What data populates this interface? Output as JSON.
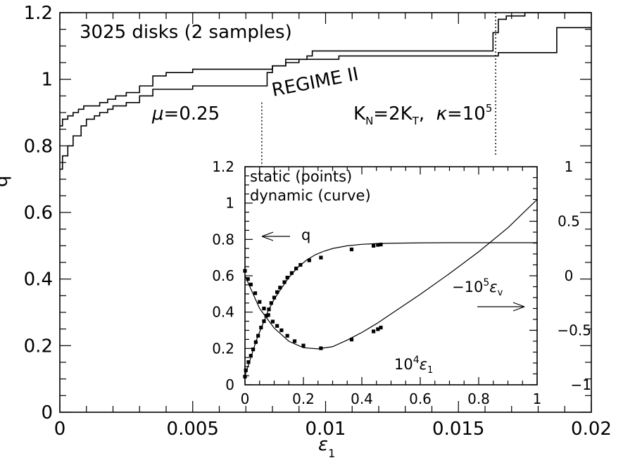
{
  "chart_data": [
    {
      "type": "line",
      "title": "",
      "xlabel": "ε",
      "xlabel_sub": "1",
      "ylabel": "q",
      "xlim": [
        0,
        0.02
      ],
      "ylim": [
        0,
        1.2
      ],
      "x_ticks": [
        0,
        0.005,
        0.01,
        0.015,
        0.02
      ],
      "x_tick_labels": [
        "0",
        "0.005",
        "0.01",
        "0.015",
        "0.02"
      ],
      "y_ticks": [
        0,
        0.2,
        0.4,
        0.6,
        0.8,
        1.0,
        1.2
      ],
      "y_tick_labels": [
        "0",
        "0.2",
        "0.4",
        "0.6",
        "0.8",
        "1",
        "1.2"
      ],
      "series": [
        {
          "x": [
            0,
            0.0001,
            0.0003,
            0.0005,
            0.0007,
            0.0009,
            0.0012,
            0.0015,
            0.0018,
            0.0021,
            0.0025,
            0.003,
            0.0035,
            0.004,
            0.005,
            0.007,
            0.0078,
            0.008,
            0.0085,
            0.0093,
            0.0095,
            0.0125,
            0.0133,
            0.0163,
            0.0165,
            0.0168,
            0.0175,
            0.02
          ],
          "y": [
            0.86,
            0.88,
            0.89,
            0.9,
            0.91,
            0.92,
            0.92,
            0.93,
            0.94,
            0.95,
            0.96,
            0.98,
            1.01,
            1.02,
            1.03,
            1.03,
            1.03,
            1.04,
            1.06,
            1.07,
            1.085,
            1.085,
            1.085,
            1.14,
            1.18,
            1.19,
            1.2,
            1.2
          ]
        },
        {
          "x": [
            0,
            0.0001,
            0.0003,
            0.0005,
            0.0008,
            0.001,
            0.0013,
            0.0015,
            0.0018,
            0.002,
            0.0025,
            0.003,
            0.0035,
            0.004,
            0.005,
            0.007,
            0.0073,
            0.0078,
            0.008,
            0.0085,
            0.009,
            0.0105,
            0.0125,
            0.0135,
            0.0165,
            0.0185,
            0.0187,
            0.02
          ],
          "y": [
            0.73,
            0.77,
            0.8,
            0.83,
            0.86,
            0.88,
            0.89,
            0.9,
            0.91,
            0.92,
            0.93,
            0.95,
            0.97,
            0.97,
            0.98,
            0.98,
            0.98,
            1.02,
            1.04,
            1.05,
            1.06,
            1.07,
            1.07,
            1.07,
            1.08,
            1.08,
            1.155,
            1.155
          ]
        }
      ],
      "annotations": {
        "top_left": "3025 disks (2 samples)",
        "regime": "REGIME II",
        "mu_symbol": "μ",
        "mu_text": "=0.25",
        "params_K": "K",
        "params_N": "N",
        "params_mid": "=2K",
        "params_T": "T",
        "params_sep": ",  ",
        "params_kappa": "κ",
        "params_eq": "=10",
        "params_exp": "5"
      },
      "dotted_lines_x": [
        0.0076,
        0.0164
      ]
    },
    {
      "type": "line",
      "title": "",
      "xlim": [
        0,
        1
      ],
      "ylim_left": [
        0,
        1.2
      ],
      "ylim_right": [
        -1,
        1
      ],
      "x_ticks": [
        0,
        0.2,
        0.4,
        0.6,
        0.8,
        1
      ],
      "x_tick_labels": [
        "0",
        "0.2",
        "0.4",
        "0.6",
        "0.8",
        "1"
      ],
      "y_left_ticks": [
        0,
        0.2,
        0.4,
        0.6,
        0.8,
        1.0,
        1.2
      ],
      "y_left_tick_labels": [
        "0",
        "0.2",
        "0.4",
        "0.6",
        "0.8",
        "1",
        "1.2"
      ],
      "y_right_ticks": [
        -1,
        -0.5,
        0,
        0.5,
        1
      ],
      "y_right_tick_labels": [
        "−1",
        "−0.5",
        "0",
        "0.5",
        "1"
      ],
      "legend_lines": [
        "static (points)",
        "dynamic (curve)"
      ],
      "q_arrow_label": "q",
      "ev_label_prefix": "−10",
      "ev_label_exp": "5",
      "ev_label_eps": "ε",
      "ev_label_sub": "v",
      "x_label_base": "10",
      "x_label_exp": "4",
      "x_label_eps": "ε",
      "x_label_sub": "1",
      "series": [
        {
          "name": "",
          "axis": "left",
          "x": [
            0,
            0.02,
            0.04,
            0.06,
            0.08,
            0.1,
            0.12,
            0.15,
            0.18,
            0.21,
            0.24,
            0.27,
            0.3,
            0.35,
            0.4,
            0.45,
            0.5,
            0.6,
            0.7,
            0.8,
            0.9,
            1.0
          ],
          "y": [
            0.05,
            0.15,
            0.25,
            0.33,
            0.41,
            0.47,
            0.52,
            0.59,
            0.645,
            0.685,
            0.715,
            0.735,
            0.75,
            0.765,
            0.773,
            0.777,
            0.779,
            0.781,
            0.782,
            0.782,
            0.782,
            0.782
          ]
        },
        {
          "name": "",
          "axis": "left",
          "x": [
            0,
            0.003,
            0.012,
            0.02,
            0.028,
            0.037,
            0.045,
            0.055,
            0.065,
            0.073,
            0.082,
            0.09,
            0.1,
            0.11,
            0.12,
            0.135,
            0.145,
            0.16,
            0.175,
            0.19,
            0.22,
            0.26,
            0.365,
            0.44,
            0.455,
            0.465
          ],
          "y": [
            0.045,
            0.08,
            0.125,
            0.16,
            0.195,
            0.235,
            0.27,
            0.315,
            0.35,
            0.38,
            0.415,
            0.45,
            0.48,
            0.51,
            0.535,
            0.565,
            0.59,
            0.615,
            0.64,
            0.66,
            0.685,
            0.7,
            0.745,
            0.765,
            0.77,
            0.772
          ]
        },
        {
          "name": "",
          "axis": "right",
          "x": [
            0,
            0.05,
            0.1,
            0.15,
            0.2,
            0.25,
            0.3,
            0.35,
            0.4,
            0.45,
            0.5,
            0.6,
            0.7,
            0.8,
            0.9,
            1.0
          ],
          "y": [
            0.0,
            -0.3,
            -0.48,
            -0.6,
            -0.66,
            -0.67,
            -0.65,
            -0.59,
            -0.52,
            -0.44,
            -0.35,
            -0.17,
            0.02,
            0.22,
            0.44,
            0.7
          ]
        },
        {
          "name": "",
          "axis": "right",
          "x": [
            0,
            0.01,
            0.02,
            0.035,
            0.05,
            0.065,
            0.08,
            0.095,
            0.11,
            0.125,
            0.145,
            0.17,
            0.2,
            0.26,
            0.365,
            0.44,
            0.455,
            0.465
          ],
          "y": [
            0.045,
            -0.03,
            -0.08,
            -0.16,
            -0.24,
            -0.3,
            -0.36,
            -0.42,
            -0.46,
            -0.5,
            -0.55,
            -0.6,
            -0.64,
            -0.665,
            -0.585,
            -0.51,
            -0.49,
            -0.475
          ]
        }
      ]
    }
  ]
}
